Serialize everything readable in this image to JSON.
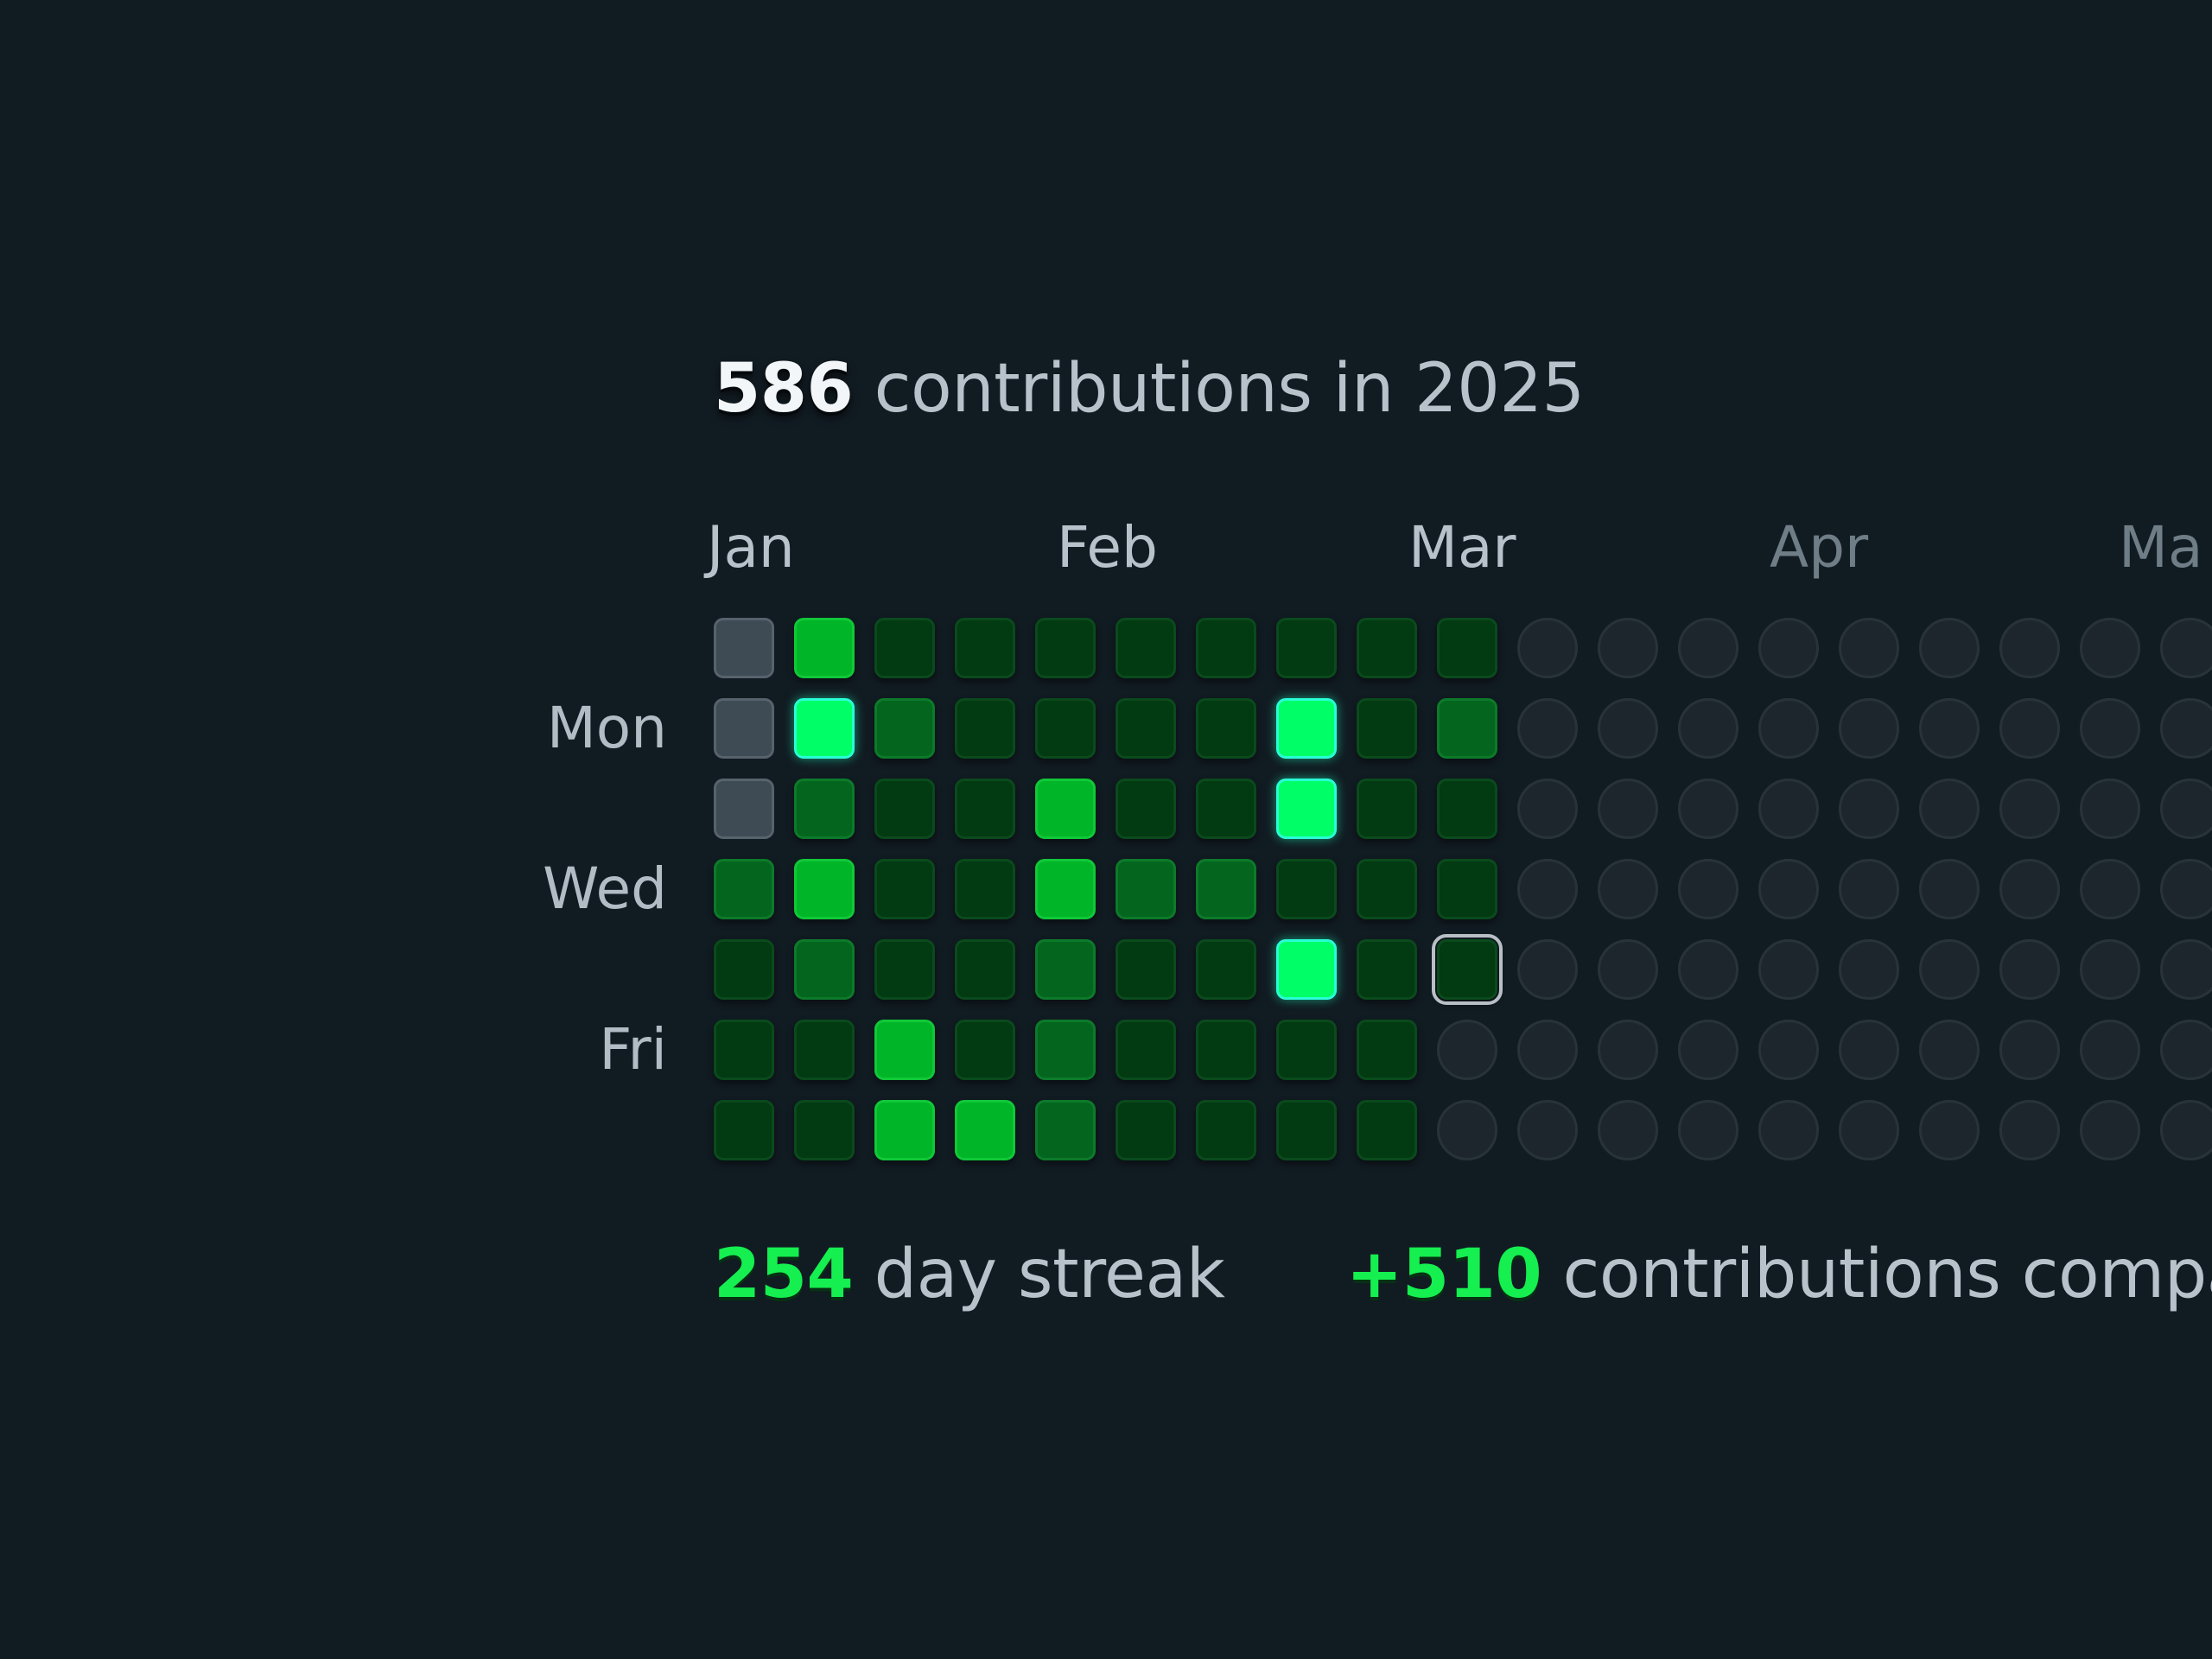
{
  "header": {
    "count": "586",
    "text": "contributions in 2025"
  },
  "months": [
    {
      "label": "Jan",
      "color": "#b7c2ca"
    },
    {
      "label": "Feb",
      "color": "#b7c2ca"
    },
    {
      "label": "Mar",
      "color": "#b7c2ca"
    },
    {
      "label": "Apr",
      "color": "#6f7d87"
    },
    {
      "label": "Ma",
      "color": "#6f7d87"
    }
  ],
  "weekdays": [
    {
      "label": "Mon",
      "row": 1
    },
    {
      "label": "Wed",
      "row": 3
    },
    {
      "label": "Fri",
      "row": 5
    }
  ],
  "grid": {
    "levels_legend": {
      "future": "pre-year (grey)",
      "0": "no activity (empty circle)",
      "1": "low",
      "2": "medium",
      "3": "high",
      "4": "highest"
    },
    "columns": [
      [
        "future",
        "future",
        "future",
        2,
        1,
        1,
        1
      ],
      [
        3,
        4,
        2,
        3,
        2,
        1,
        1
      ],
      [
        1,
        2,
        1,
        1,
        1,
        3,
        3
      ],
      [
        1,
        1,
        1,
        1,
        1,
        1,
        3
      ],
      [
        1,
        1,
        3,
        3,
        2,
        2,
        2
      ],
      [
        1,
        1,
        1,
        2,
        1,
        1,
        1
      ],
      [
        1,
        1,
        1,
        2,
        1,
        1,
        1
      ],
      [
        1,
        4,
        4,
        1,
        4,
        1,
        1
      ],
      [
        1,
        1,
        1,
        1,
        1,
        1,
        1
      ],
      [
        1,
        2,
        1,
        1,
        "today",
        0,
        0
      ],
      [
        0,
        0,
        0,
        0,
        0,
        0,
        0
      ],
      [
        0,
        0,
        0,
        0,
        0,
        0,
        0
      ],
      [
        0,
        0,
        0,
        0,
        0,
        0,
        0
      ],
      [
        0,
        0,
        0,
        0,
        0,
        0,
        0
      ],
      [
        0,
        0,
        0,
        0,
        0,
        0,
        0
      ],
      [
        0,
        0,
        0,
        0,
        0,
        0,
        0
      ],
      [
        0,
        0,
        0,
        0,
        0,
        0,
        0
      ],
      [
        0,
        0,
        0,
        0,
        0,
        0,
        0
      ],
      [
        0,
        0,
        0,
        0,
        0,
        0,
        0
      ]
    ]
  },
  "stats": {
    "streak_count": "254",
    "streak_text": "day streak",
    "compare_count": "+510",
    "compare_text": "contributions compa"
  }
}
